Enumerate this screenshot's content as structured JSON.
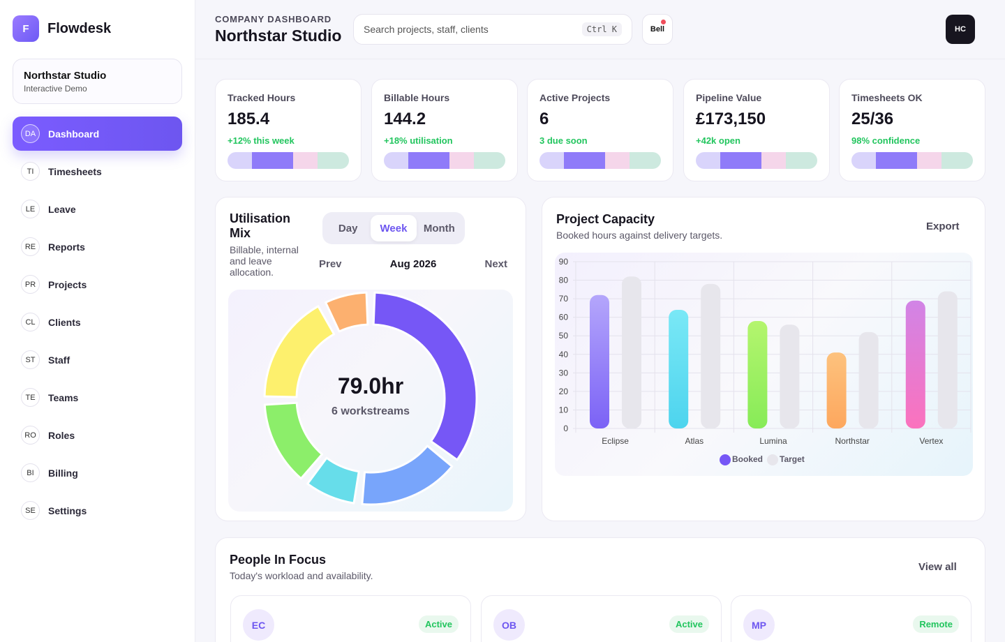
{
  "brand": {
    "logo_letter": "F",
    "name": "Flowdesk"
  },
  "workspace": {
    "name": "Northstar Studio",
    "subtitle": "Interactive Demo"
  },
  "nav": [
    {
      "badge": "DA",
      "label": "Dashboard",
      "active": true
    },
    {
      "badge": "TI",
      "label": "Timesheets"
    },
    {
      "badge": "LE",
      "label": "Leave"
    },
    {
      "badge": "RE",
      "label": "Reports"
    },
    {
      "badge": "PR",
      "label": "Projects"
    },
    {
      "badge": "CL",
      "label": "Clients"
    },
    {
      "badge": "ST",
      "label": "Staff"
    },
    {
      "badge": "TE",
      "label": "Teams"
    },
    {
      "badge": "RO",
      "label": "Roles"
    },
    {
      "badge": "BI",
      "label": "Billing"
    },
    {
      "badge": "SE",
      "label": "Settings"
    }
  ],
  "header": {
    "eyebrow": "COMPANY DASHBOARD",
    "title": "Northstar Studio",
    "search_placeholder": "Search projects, staff, clients",
    "search_shortcut": "Ctrl K",
    "bell_label": "Bell",
    "avatar_initials": "HC"
  },
  "stats": [
    {
      "label": "Tracked Hours",
      "value": "185.4",
      "delta": "+12% this week"
    },
    {
      "label": "Billable Hours",
      "value": "144.2",
      "delta": "+18% utilisation"
    },
    {
      "label": "Active Projects",
      "value": "6",
      "delta": "3 due soon"
    },
    {
      "label": "Pipeline Value",
      "value": "£173,150",
      "delta": "+42k open"
    },
    {
      "label": "Timesheets OK",
      "value": "25/36",
      "delta": "98% confidence"
    }
  ],
  "utilisation": {
    "title": "Utilisation Mix",
    "subtitle": "Billable, internal and leave allocation.",
    "tabs": [
      "Day",
      "Week",
      "Month"
    ],
    "active_tab": "Week",
    "prev_label": "Prev",
    "period": "Aug 2026",
    "next_label": "Next",
    "center_value": "79.0hr",
    "center_label": "6 workstreams",
    "segments": [
      {
        "value": 28.0,
        "color": "#7657f6"
      },
      {
        "value": 13.0,
        "color": "#78a5fb"
      },
      {
        "value": 7.0,
        "color": "#67ddea"
      },
      {
        "value": 11.0,
        "color": "#8cee6a"
      },
      {
        "value": 14.0,
        "color": "#fdf06d"
      },
      {
        "value": 6.0,
        "color": "#fcb06f"
      }
    ]
  },
  "capacity": {
    "title": "Project Capacity",
    "subtitle": "Booked hours against delivery targets.",
    "export_label": "Export"
  },
  "chart_data": {
    "type": "bar",
    "categories": [
      "Eclipse",
      "Atlas",
      "Lumina",
      "Northstar",
      "Vertex"
    ],
    "series": [
      {
        "name": "Booked",
        "values": [
          72,
          64,
          58,
          41,
          69
        ],
        "colors": [
          [
            "#b4a6fb",
            "#7b62f6"
          ],
          [
            "#7ae8f6",
            "#4dd4ee"
          ],
          [
            "#b4f56e",
            "#87eb58"
          ],
          [
            "#fdc27d",
            "#fda75e"
          ],
          [
            "#d184e6",
            "#fb72bd"
          ]
        ]
      },
      {
        "name": "Target",
        "values": [
          82,
          78,
          56,
          52,
          74
        ],
        "color": "#e7e6ec"
      }
    ],
    "ylim": [
      0,
      90
    ],
    "yticks": [
      0,
      10,
      20,
      30,
      40,
      50,
      60,
      70,
      80,
      90
    ],
    "legend_position": "bottom",
    "grid": true,
    "legend_colors": [
      "#7657f6",
      "#e7e6ec"
    ]
  },
  "people": {
    "title": "People In Focus",
    "subtitle": "Today's workload and availability.",
    "view_all_label": "View all",
    "cards": [
      {
        "initials": "EC",
        "status": "Active"
      },
      {
        "initials": "OB",
        "status": "Active"
      },
      {
        "initials": "MP",
        "status": "Remote"
      }
    ]
  }
}
